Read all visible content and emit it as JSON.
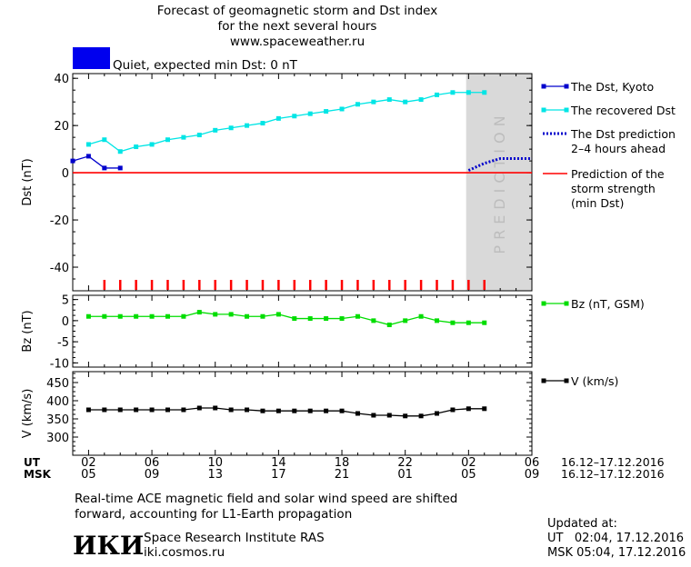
{
  "header": {
    "title_lines": [
      "Forecast of geomagnetic storm and Dst index",
      "for the next several hours",
      "www.spaceweather.ru"
    ],
    "status_color": "#0000ee",
    "status_text": "Quiet, expected min Dst: 0 nT"
  },
  "axes": {
    "time_start": 1,
    "time_end": 6,
    "prediction_start": 1.85,
    "ut_ticks": [
      {
        "v": 2,
        "l": "02"
      },
      {
        "v": 6,
        "l": "06"
      },
      {
        "v": 10,
        "l": "10"
      },
      {
        "v": 14,
        "l": "14"
      },
      {
        "v": 18,
        "l": "18"
      },
      {
        "v": 22,
        "l": "22"
      },
      {
        "v": 26,
        "l": "02"
      },
      {
        "v": 30,
        "l": "06"
      }
    ],
    "msk_ticks": [
      {
        "v": 2,
        "l": "05"
      },
      {
        "v": 6,
        "l": "09"
      },
      {
        "v": 10,
        "l": "13"
      },
      {
        "v": 14,
        "l": "17"
      },
      {
        "v": 18,
        "l": "21"
      },
      {
        "v": 22,
        "l": "01"
      },
      {
        "v": 26,
        "l": "05"
      },
      {
        "v": 30,
        "l": "09"
      }
    ],
    "ut_label": "UT",
    "msk_label": "MSK",
    "ut_range": "16.12–17.12.2016",
    "msk_range": "16.12–17.12.2016"
  },
  "chart_data": [
    {
      "type": "line",
      "ylabel": "Dst (nT)",
      "ylim": [
        -50,
        42
      ],
      "yticks": [
        -40,
        -20,
        0,
        20,
        40
      ],
      "prediction_label": "PREDICTION",
      "series": [
        {
          "name": "The Dst, Kyoto",
          "color": "#0000cc",
          "x": [
            1,
            2,
            3,
            4
          ],
          "y": [
            5,
            7,
            2,
            2
          ]
        },
        {
          "name": "The recovered Dst",
          "color": "#00e5e5",
          "x": [
            2,
            3,
            4,
            5,
            6,
            7,
            8,
            9,
            10,
            11,
            12,
            13,
            14,
            15,
            16,
            17,
            18,
            19,
            20,
            21,
            22,
            23,
            24,
            25,
            26,
            27
          ],
          "y": [
            12,
            14,
            9,
            11,
            12,
            14,
            15,
            16,
            18,
            19,
            20,
            21,
            23,
            24,
            25,
            26,
            27,
            29,
            30,
            31,
            30,
            31,
            33,
            34,
            34,
            34
          ]
        },
        {
          "name": "The Dst prediction\n2–4 hours ahead",
          "color": "#0000cc",
          "x": [
            26,
            27,
            28,
            29,
            30
          ],
          "y": [
            1,
            4,
            6,
            6,
            6
          ]
        },
        {
          "name": "Prediction of the\nstorm strength\n(min Dst)",
          "color": "#ff0000",
          "x": [
            1,
            30
          ],
          "y": [
            0,
            0
          ]
        }
      ],
      "storm_marks_x": [
        3,
        4,
        5,
        6,
        7,
        8,
        9,
        10,
        11,
        12,
        13,
        14,
        15,
        16,
        17,
        18,
        19,
        20,
        21,
        22,
        23,
        24,
        25,
        26,
        27
      ]
    },
    {
      "type": "line",
      "ylabel": "Bz (nT)",
      "ylim": [
        -11,
        6
      ],
      "yticks": [
        -10,
        -5,
        0,
        5
      ],
      "series": [
        {
          "name": "Bz (nT, GSM)",
          "color": "#00dd00",
          "x": [
            2,
            3,
            4,
            5,
            6,
            7,
            8,
            9,
            10,
            11,
            12,
            13,
            14,
            15,
            16,
            17,
            18,
            19,
            20,
            21,
            22,
            23,
            24,
            25,
            26,
            27
          ],
          "y": [
            1,
            1,
            1,
            1,
            1,
            1,
            1,
            2,
            1.5,
            1.5,
            1,
            1,
            1.5,
            0.5,
            0.5,
            0.5,
            0.5,
            1,
            0,
            -1,
            0,
            1,
            0,
            -0.5,
            -0.5,
            -0.5
          ]
        }
      ]
    },
    {
      "type": "line",
      "ylabel": "V (km/s)",
      "ylim": [
        250,
        480
      ],
      "yticks": [
        300,
        350,
        400,
        450
      ],
      "series": [
        {
          "name": "V (km/s)",
          "color": "#000000",
          "x": [
            2,
            3,
            4,
            5,
            6,
            7,
            8,
            9,
            10,
            11,
            12,
            13,
            14,
            15,
            16,
            17,
            18,
            19,
            20,
            21,
            22,
            23,
            24,
            25,
            26,
            27
          ],
          "y": [
            375,
            375,
            375,
            375,
            375,
            375,
            375,
            380,
            380,
            375,
            375,
            372,
            372,
            372,
            372,
            372,
            372,
            365,
            360,
            360,
            358,
            358,
            365,
            375,
            378,
            378
          ]
        }
      ]
    }
  ],
  "footer": {
    "note_line1": "Real-time ACE magnetic field and solar wind speed are shifted",
    "note_line2": "forward, accounting for L1-Earth propagation",
    "logo_text": "ИКИ",
    "institute": "Space Research Institute RAS",
    "site": "iki.cosmos.ru",
    "updated_label": "Updated at:",
    "updated_ut": "UT   02:04, 17.12.2016",
    "updated_msk": "MSK 05:04, 17.12.2016"
  }
}
